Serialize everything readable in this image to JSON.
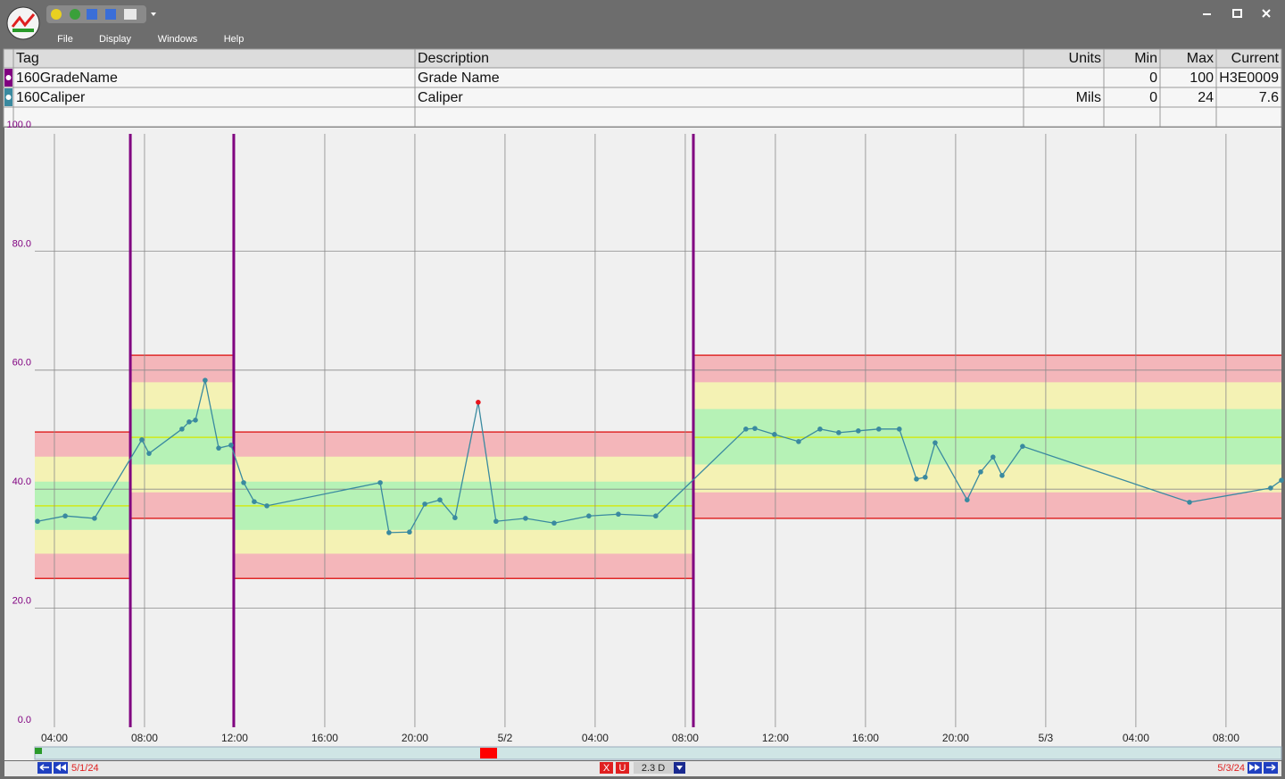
{
  "window": {
    "menu": [
      "File",
      "Display",
      "Windows",
      "Help"
    ]
  },
  "table": {
    "headers": [
      "Tag",
      "Description",
      "Units",
      "Min",
      "Max",
      "Current"
    ],
    "rows": [
      {
        "color": "#800080",
        "cells": [
          "160GradeName",
          "Grade Name",
          null,
          0,
          100,
          "H3E0009"
        ]
      },
      {
        "color": "#3a8aa0",
        "cells": [
          "160Caliper",
          "Caliper",
          "Mils",
          0,
          24,
          7.6
        ]
      }
    ]
  },
  "chart_data": {
    "type": "line",
    "xlim": [
      3.13,
      58.46
    ],
    "xticks": [
      {
        "value": 4,
        "label": "04:00"
      },
      {
        "value": 8,
        "label": "08:00"
      },
      {
        "value": 12,
        "label": "12:00"
      },
      {
        "value": 16,
        "label": "16:00"
      },
      {
        "value": 20,
        "label": "20:00"
      },
      {
        "value": 24,
        "label": "5/2"
      },
      {
        "value": 28,
        "label": "04:00"
      },
      {
        "value": 32,
        "label": "08:00"
      },
      {
        "value": 36,
        "label": "12:00"
      },
      {
        "value": 40,
        "label": "16:00"
      },
      {
        "value": 44,
        "label": "20:00"
      },
      {
        "value": 48,
        "label": "5/3"
      },
      {
        "value": 52,
        "label": "04:00"
      },
      {
        "value": 56,
        "label": "08:00"
      }
    ],
    "ylim": [
      0,
      100
    ],
    "yticks": [
      {
        "value": 0,
        "label": "0.0"
      },
      {
        "value": 20,
        "label": "20.0"
      },
      {
        "value": 40,
        "label": "40.0"
      },
      {
        "value": 60,
        "label": "60.0"
      },
      {
        "value": 80,
        "label": "80.0"
      },
      {
        "value": 100,
        "label": "100.0"
      }
    ],
    "grid": true,
    "x": [
      3.25,
      4.48,
      5.78,
      7.88,
      8.2,
      9.66,
      9.98,
      10.26,
      10.69,
      11.29,
      11.84,
      12.4,
      12.87,
      13.43,
      18.46,
      18.85,
      19.76,
      20.44,
      21.11,
      21.78,
      22.81,
      23.6,
      24.91,
      26.18,
      27.72,
      29.03,
      30.69,
      34.69,
      35.09,
      35.96,
      37.03,
      37.98,
      38.81,
      39.68,
      40.59,
      41.5,
      42.26,
      42.65,
      43.09,
      44.51,
      45.11,
      45.66,
      46.06,
      46.97,
      54.38,
      57.98,
      58.46
    ],
    "series": [
      {
        "name": "160Caliper",
        "color": "#3a8aa0",
        "values": [
          34.6,
          35.5,
          35.1,
          48.3,
          46.0,
          50.1,
          51.3,
          51.6,
          58.3,
          46.9,
          47.4,
          41.1,
          37.9,
          37.2,
          41.1,
          32.7,
          32.8,
          37.5,
          38.2,
          35.2,
          54.6,
          34.6,
          35.1,
          34.3,
          35.5,
          35.8,
          35.5,
          50.1,
          50.2,
          49.2,
          48.0,
          50.1,
          49.5,
          49.8,
          50.1,
          50.1,
          41.7,
          42.0,
          47.8,
          38.2,
          42.9,
          45.4,
          42.3,
          47.2,
          37.8,
          40.2,
          41.5
        ]
      }
    ],
    "alarm": {
      "index": 20,
      "color": "#e8141c"
    },
    "grade_changes": [
      7.37,
      11.96,
      32.36
    ],
    "grade_change_color": "#800080",
    "zone_colors": [
      "#f4b6ba",
      "#f4f2b4",
      "#b6f2b6",
      "#b6f2b6",
      "#f4f2b4",
      "#f4b6ba"
    ],
    "limit_color": "#e02828",
    "target_color": "#d0e818",
    "limit_segments": [
      {
        "start": 3.13,
        "end": 7.37,
        "limits": [
          49.6,
          45.4,
          41.2,
          37.2,
          33.1,
          29.1,
          25.0
        ]
      },
      {
        "start": 7.37,
        "end": 11.96,
        "limits": [
          62.5,
          57.9,
          53.4,
          48.7,
          44.1,
          39.4,
          35.1
        ]
      },
      {
        "start": 11.96,
        "end": 32.36,
        "limits": [
          49.6,
          45.4,
          41.2,
          37.2,
          33.1,
          29.1,
          25.0
        ]
      },
      {
        "start": 32.36,
        "end": 58.46,
        "limits": [
          62.5,
          57.9,
          53.4,
          48.7,
          44.1,
          39.4,
          35.1
        ]
      }
    ]
  },
  "footer": {
    "start": "5/1/24",
    "buttons": [
      "X",
      "U"
    ],
    "span": "2.3 D",
    "end": "5/3/24"
  }
}
